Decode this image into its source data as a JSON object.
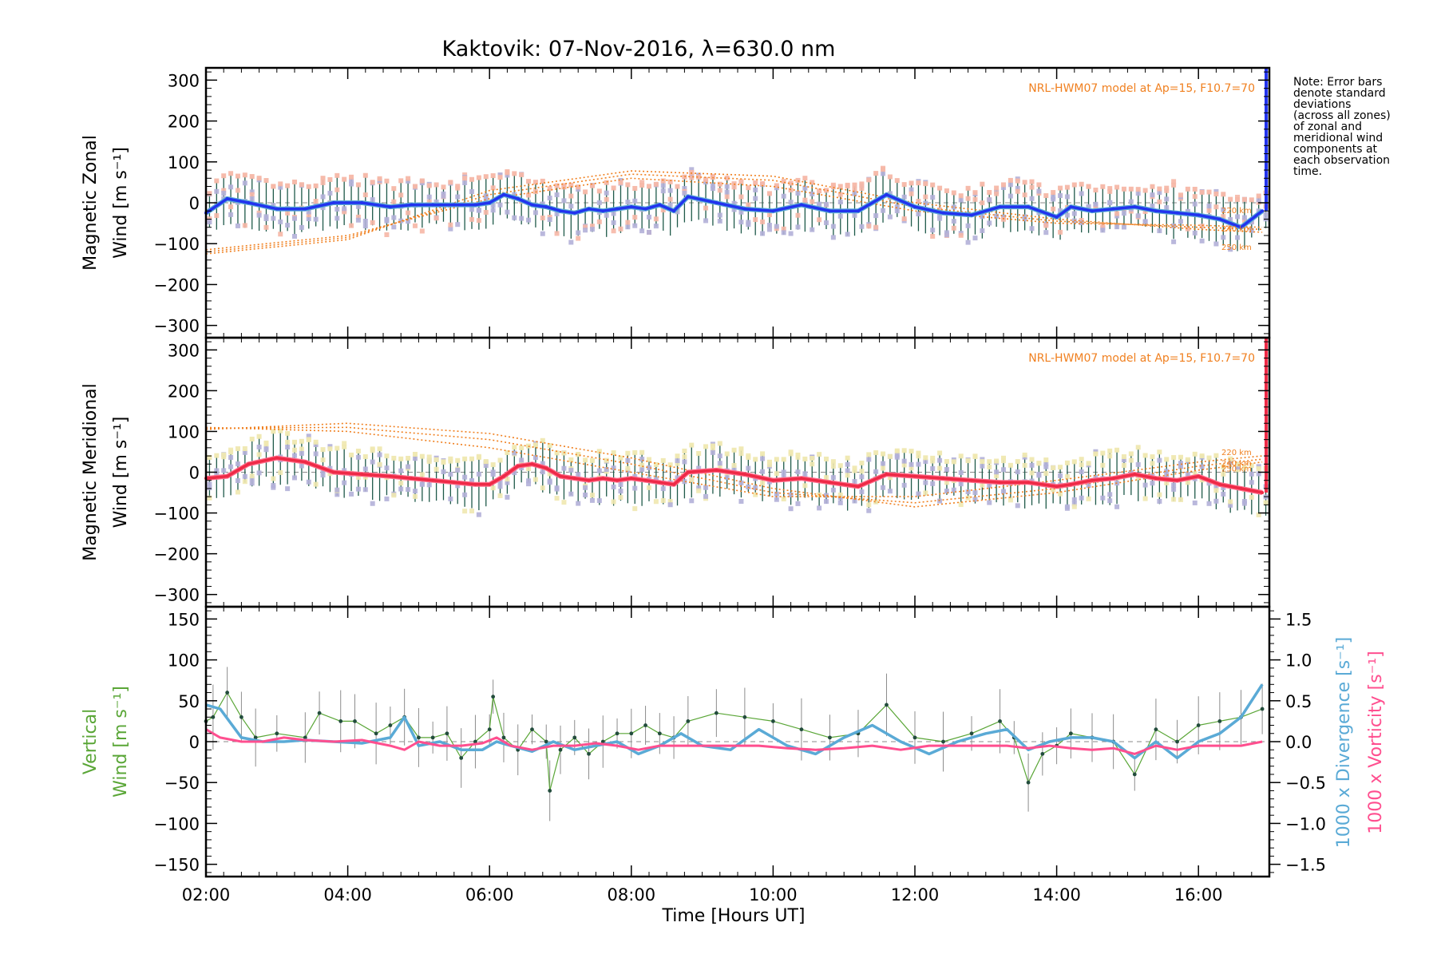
{
  "title": "Kaktovik: 07-Nov-2016, λ=630.0 nm",
  "note": [
    "Note: Error bars",
    "denote standard",
    "deviations",
    "(across all zones)",
    "of zonal and",
    "meridional wind",
    "components at",
    "each observation",
    "time."
  ],
  "colors": {
    "zonal": "#2233ee",
    "zonal_light": "#5aaad6",
    "meridional": "#ee2a46",
    "meridional_light": "#ff6b8a",
    "scatter_up": "#b3b0d8",
    "scatter_salmon": "#f6b7a6",
    "scatter_yellow": "#efe8b0",
    "errbar": "#1f5a4a",
    "model": "#f08020",
    "vertical": "#5aa637",
    "divergence": "#5aaad6",
    "vorticity": "#ff4f8f"
  },
  "chart_data": [
    {
      "type": "line",
      "name": "zonal",
      "ylabel_lines": [
        "Magnetic Zonal",
        "Wind [m s⁻¹]"
      ],
      "ylim": [
        -330,
        330
      ],
      "yticks": [
        "300",
        "200",
        "100",
        "0",
        "−100",
        "−200",
        "−300"
      ],
      "model_label": "NRL-HWM07 model at Ap=15, F10.7=70",
      "altitude_labels": [
        "220 km",
        "240 km",
        "250 km"
      ],
      "mean_wind": {
        "x": [
          2.0,
          2.3,
          2.6,
          3.0,
          3.4,
          3.8,
          4.2,
          4.6,
          4.9,
          5.2,
          5.5,
          5.8,
          6.0,
          6.2,
          6.4,
          6.6,
          6.8,
          7.0,
          7.2,
          7.4,
          7.6,
          7.8,
          8.0,
          8.2,
          8.4,
          8.6,
          8.8,
          9.2,
          9.6,
          10.0,
          10.4,
          10.8,
          11.2,
          11.6,
          12.0,
          12.4,
          12.8,
          13.2,
          13.6,
          14.0,
          14.2,
          14.5,
          14.8,
          15.1,
          15.4,
          15.7,
          16.0,
          16.3,
          16.6,
          16.9
        ],
        "y": [
          -25,
          10,
          0,
          -15,
          -15,
          0,
          0,
          -10,
          -5,
          -5,
          -5,
          -5,
          0,
          20,
          10,
          -5,
          -10,
          -20,
          -25,
          -15,
          -20,
          -15,
          -10,
          -15,
          -5,
          -20,
          15,
          0,
          -15,
          -20,
          -5,
          -20,
          -20,
          20,
          -10,
          -25,
          -30,
          -10,
          -10,
          -35,
          -10,
          -20,
          -15,
          -10,
          -20,
          -25,
          -30,
          -40,
          -60,
          -20
        ]
      },
      "model_curves": [
        {
          "label": "220 km",
          "x": [
            2,
            4,
            6,
            8,
            10,
            12,
            14,
            16,
            16.9
          ],
          "y": [
            -115,
            -80,
            10,
            60,
            40,
            -20,
            -50,
            -55,
            -60
          ]
        },
        {
          "label": "240 km",
          "x": [
            2,
            4,
            6,
            8,
            10,
            12,
            14,
            16,
            16.9
          ],
          "y": [
            -120,
            -85,
            20,
            70,
            55,
            -10,
            -45,
            -60,
            -65
          ]
        },
        {
          "label": "250 km",
          "x": [
            2,
            4,
            6,
            8,
            10,
            12,
            14,
            16,
            16.9
          ],
          "y": [
            -125,
            -90,
            30,
            78,
            65,
            0,
            -40,
            -65,
            -72
          ]
        }
      ]
    },
    {
      "type": "line",
      "name": "meridional",
      "ylabel_lines": [
        "Magnetic Meridional",
        "Wind [m s⁻¹]"
      ],
      "ylim": [
        -330,
        330
      ],
      "yticks": [
        "300",
        "200",
        "100",
        "0",
        "−100",
        "−200",
        "−300"
      ],
      "model_label": "NRL-HWM07 model at Ap=15, F10.7=70",
      "altitude_labels": [
        "220 km",
        "240 km",
        "250 km"
      ],
      "mean_wind": {
        "x": [
          2.0,
          2.3,
          2.6,
          3.0,
          3.4,
          3.8,
          4.2,
          4.6,
          4.9,
          5.2,
          5.5,
          5.8,
          6.0,
          6.2,
          6.4,
          6.6,
          6.8,
          7.0,
          7.2,
          7.4,
          7.6,
          7.8,
          8.0,
          8.2,
          8.4,
          8.6,
          8.8,
          9.2,
          9.6,
          10.0,
          10.4,
          10.8,
          11.2,
          11.6,
          12.0,
          12.4,
          12.8,
          13.2,
          13.6,
          14.0,
          14.2,
          14.5,
          14.8,
          15.1,
          15.4,
          15.7,
          16.0,
          16.3,
          16.6,
          16.9
        ],
        "y": [
          -15,
          -10,
          20,
          35,
          25,
          0,
          -5,
          -10,
          -15,
          -20,
          -25,
          -30,
          -30,
          -10,
          15,
          20,
          10,
          -10,
          -15,
          -20,
          -15,
          -20,
          -15,
          -20,
          -25,
          -30,
          0,
          5,
          -5,
          -20,
          -15,
          -25,
          -35,
          -5,
          -10,
          -15,
          -20,
          -25,
          -25,
          -35,
          -30,
          -20,
          -15,
          -5,
          -15,
          -20,
          -10,
          -30,
          -40,
          -50
        ]
      },
      "model_curves": [
        {
          "label": "220 km",
          "x": [
            2,
            4,
            6,
            8,
            10,
            12,
            14,
            16,
            16.9
          ],
          "y": [
            110,
            100,
            60,
            0,
            -60,
            -60,
            -20,
            25,
            40
          ]
        },
        {
          "label": "240 km",
          "x": [
            2,
            4,
            6,
            8,
            10,
            12,
            14,
            16,
            16.9
          ],
          "y": [
            108,
            110,
            80,
            20,
            -50,
            -75,
            -40,
            15,
            32
          ]
        },
        {
          "label": "250 km",
          "x": [
            2,
            4,
            6,
            8,
            10,
            12,
            14,
            16,
            16.9
          ],
          "y": [
            105,
            120,
            95,
            35,
            -40,
            -85,
            -50,
            5,
            25
          ]
        }
      ]
    },
    {
      "type": "line",
      "name": "vertical",
      "ylabel_lines": [
        "Vertical",
        "Wind [m s⁻¹]"
      ],
      "ylim": [
        -165,
        165
      ],
      "yticks": [
        "150",
        "100",
        "50",
        "0",
        "−50",
        "−100",
        "−150"
      ],
      "y2lim": [
        -1.65,
        1.65
      ],
      "y2ticks": [
        "1.5",
        "1.0",
        "0.5",
        "0.0",
        "−0.5",
        "−1.0",
        "−1.5"
      ],
      "y2label_divergence": "1000 x Divergence [s⁻¹]",
      "y2label_vorticity": "1000 x Vorticity [s⁻¹]",
      "xticks": [
        "02:00",
        "04:00",
        "06:00",
        "08:00",
        "10:00",
        "12:00",
        "14:00",
        "16:00"
      ],
      "xlabel": "Time [Hours UT]",
      "xlim": [
        2.0,
        17.0
      ],
      "vertical_wind": {
        "x": [
          2.0,
          2.1,
          2.3,
          2.5,
          2.7,
          3.0,
          3.4,
          3.6,
          3.9,
          4.1,
          4.4,
          4.6,
          4.8,
          5.0,
          5.2,
          5.4,
          5.6,
          5.8,
          6.0,
          6.05,
          6.2,
          6.4,
          6.6,
          6.8,
          6.85,
          7.0,
          7.2,
          7.4,
          7.6,
          7.8,
          8.0,
          8.2,
          8.4,
          8.6,
          8.8,
          9.2,
          9.6,
          10.0,
          10.4,
          10.8,
          11.2,
          11.6,
          12.0,
          12.4,
          12.8,
          13.2,
          13.4,
          13.6,
          13.8,
          14.0,
          14.2,
          14.5,
          14.8,
          15.1,
          15.4,
          15.7,
          16.0,
          16.3,
          16.6,
          16.9
        ],
        "y": [
          25,
          30,
          60,
          30,
          5,
          10,
          5,
          35,
          25,
          25,
          10,
          20,
          30,
          5,
          5,
          10,
          -20,
          0,
          15,
          55,
          5,
          -10,
          15,
          0,
          -60,
          -10,
          5,
          -15,
          0,
          10,
          10,
          20,
          10,
          5,
          25,
          35,
          30,
          25,
          15,
          5,
          10,
          45,
          5,
          0,
          10,
          25,
          5,
          -50,
          -15,
          -5,
          10,
          5,
          0,
          -40,
          15,
          0,
          20,
          25,
          30,
          40
        ]
      },
      "divergence": {
        "x": [
          2.0,
          2.2,
          2.5,
          2.8,
          3.1,
          3.4,
          3.8,
          4.2,
          4.6,
          4.8,
          5.0,
          5.3,
          5.6,
          5.9,
          6.1,
          6.3,
          6.6,
          6.9,
          7.2,
          7.5,
          7.8,
          8.1,
          8.4,
          8.7,
          9.0,
          9.4,
          9.8,
          10.2,
          10.6,
          11.0,
          11.4,
          11.8,
          12.2,
          12.6,
          13.0,
          13.3,
          13.6,
          13.9,
          14.2,
          14.5,
          14.8,
          15.1,
          15.4,
          15.7,
          16.0,
          16.3,
          16.6,
          16.9
        ],
        "y": [
          0.45,
          0.4,
          0.05,
          0.0,
          0.0,
          0.02,
          0.0,
          -0.02,
          0.05,
          0.3,
          -0.05,
          0.0,
          -0.1,
          -0.1,
          0.0,
          -0.05,
          -0.12,
          0.0,
          -0.1,
          -0.05,
          0.0,
          -0.15,
          -0.05,
          0.1,
          -0.05,
          -0.1,
          0.15,
          -0.05,
          -0.15,
          0.05,
          0.2,
          0.0,
          -0.15,
          0.0,
          0.1,
          0.15,
          -0.1,
          0.0,
          0.05,
          0.05,
          0.0,
          -0.2,
          0.0,
          -0.2,
          0.0,
          0.1,
          0.3,
          0.7
        ]
      },
      "vorticity": {
        "x": [
          2.0,
          2.2,
          2.5,
          2.8,
          3.1,
          3.4,
          3.8,
          4.2,
          4.6,
          4.8,
          5.0,
          5.3,
          5.6,
          5.9,
          6.1,
          6.3,
          6.6,
          6.9,
          7.2,
          7.5,
          7.8,
          8.1,
          8.4,
          8.7,
          9.0,
          9.4,
          9.8,
          10.2,
          10.6,
          11.0,
          11.4,
          11.8,
          12.2,
          12.6,
          13.0,
          13.3,
          13.6,
          13.9,
          14.2,
          14.5,
          14.8,
          15.1,
          15.4,
          15.7,
          16.0,
          16.3,
          16.6,
          16.9
        ],
        "y": [
          0.15,
          0.05,
          0.0,
          0.0,
          0.05,
          0.02,
          0.0,
          0.02,
          -0.05,
          -0.1,
          0.0,
          -0.05,
          -0.05,
          -0.02,
          0.05,
          -0.05,
          -0.1,
          -0.05,
          -0.05,
          -0.02,
          -0.05,
          -0.1,
          -0.05,
          -0.05,
          -0.05,
          -0.05,
          -0.05,
          -0.08,
          -0.1,
          -0.08,
          -0.05,
          -0.1,
          -0.05,
          -0.05,
          -0.05,
          -0.05,
          -0.08,
          -0.05,
          -0.08,
          -0.1,
          -0.08,
          -0.15,
          -0.05,
          -0.1,
          -0.05,
          -0.05,
          -0.05,
          0.0
        ]
      }
    }
  ]
}
